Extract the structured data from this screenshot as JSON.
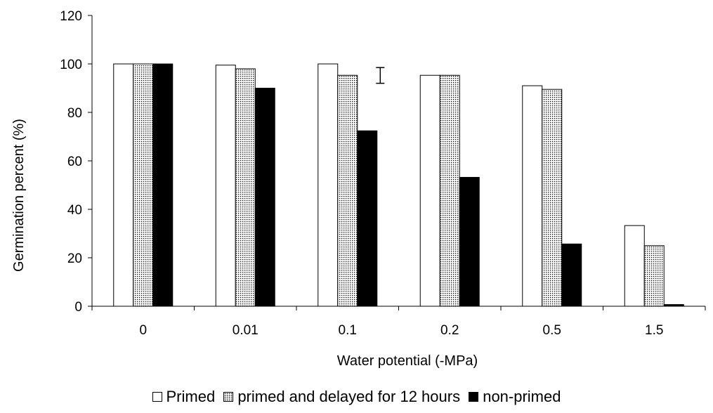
{
  "chart_data": {
    "type": "bar",
    "xlabel": "Water potential (-MPa)",
    "ylabel": "Germination percent (%)",
    "ylim": [
      0,
      120
    ],
    "yticks": [
      "0",
      "20",
      "40",
      "60",
      "80",
      "100",
      "120"
    ],
    "categories": [
      "0",
      "0.01",
      "0.1",
      "0.2",
      "0.5",
      "1.5"
    ],
    "series": [
      {
        "name": "Primed",
        "values": [
          100,
          99.5,
          100,
          95.3,
          91,
          33.3
        ],
        "fill": "#ffffff"
      },
      {
        "name": "primed and delayed for 12 hours",
        "values": [
          100,
          98,
          95.3,
          95.3,
          89.5,
          25
        ],
        "fill": "hatch"
      },
      {
        "name": "non-primed",
        "values": [
          100,
          90,
          72.4,
          53.2,
          25.7,
          0.7
        ],
        "fill": "#000000"
      }
    ],
    "error_bar": {
      "low": 92,
      "high": 98.5
    },
    "legend_position": "bottom"
  }
}
